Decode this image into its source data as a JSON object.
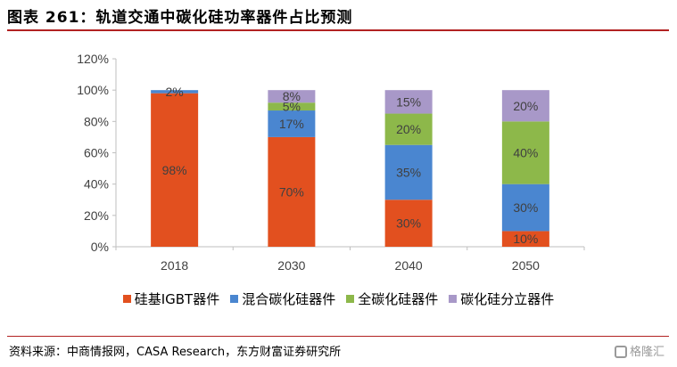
{
  "header": {
    "title": "图表 261：轨道交通中碳化硅功率器件占比预测"
  },
  "footer": {
    "source": "资料来源：中商情报网，CASA Research，东方财富证券研究所",
    "watermark": "格隆汇"
  },
  "chart_data": {
    "type": "bar",
    "stacked": true,
    "categories": [
      "2018",
      "2030",
      "2040",
      "2050"
    ],
    "ylim": [
      0,
      120
    ],
    "yticks": [
      0,
      20,
      40,
      60,
      80,
      100,
      120
    ],
    "ytick_format": "%",
    "grid": false,
    "legend_position": "bottom",
    "series": [
      {
        "name": "硅基IGBT器件",
        "color": "#E2501F",
        "values": [
          98,
          70,
          30,
          10
        ],
        "labels": [
          "98%",
          "70%",
          "30%",
          "10%"
        ]
      },
      {
        "name": "混合碳化硅器件",
        "color": "#4A86D0",
        "values": [
          2,
          17,
          35,
          30
        ],
        "labels": [
          "2%",
          "17%",
          "35%",
          "30%"
        ]
      },
      {
        "name": "全碳化硅器件",
        "color": "#8DB84A",
        "values": [
          0,
          5,
          20,
          40
        ],
        "labels": [
          "",
          "5%",
          "20%",
          "40%"
        ]
      },
      {
        "name": "碳化硅分立器件",
        "color": "#A898C8",
        "values": [
          0,
          8,
          15,
          20
        ],
        "labels": [
          "",
          "8%",
          "15%",
          "20%"
        ]
      }
    ]
  }
}
